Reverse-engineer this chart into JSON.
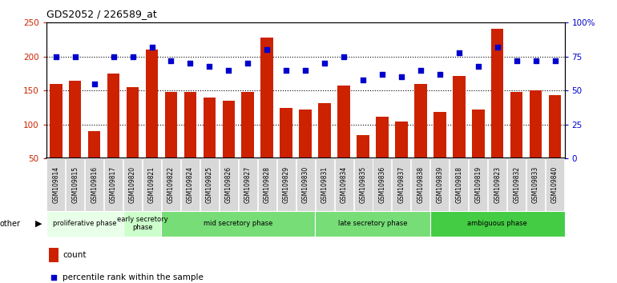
{
  "title": "GDS2052 / 226589_at",
  "samples": [
    "GSM109814",
    "GSM109815",
    "GSM109816",
    "GSM109817",
    "GSM109820",
    "GSM109821",
    "GSM109822",
    "GSM109824",
    "GSM109825",
    "GSM109826",
    "GSM109827",
    "GSM109828",
    "GSM109829",
    "GSM109830",
    "GSM109831",
    "GSM109834",
    "GSM109835",
    "GSM109836",
    "GSM109837",
    "GSM109838",
    "GSM109839",
    "GSM109818",
    "GSM109819",
    "GSM109823",
    "GSM109832",
    "GSM109833",
    "GSM109840"
  ],
  "counts": [
    160,
    165,
    90,
    175,
    155,
    210,
    148,
    148,
    140,
    135,
    148,
    228,
    125,
    122,
    131,
    157,
    84,
    112,
    104,
    160,
    118,
    172,
    122,
    241,
    148,
    150,
    143
  ],
  "percentiles": [
    75,
    75,
    55,
    75,
    75,
    82,
    72,
    70,
    68,
    65,
    70,
    80,
    65,
    65,
    70,
    75,
    58,
    62,
    60,
    65,
    62,
    78,
    68,
    82,
    72,
    72,
    72
  ],
  "bar_color": "#cc2200",
  "dot_color": "#0000cc",
  "ylim_left": [
    50,
    250
  ],
  "ylim_right": [
    0,
    100
  ],
  "yticks_left": [
    50,
    100,
    150,
    200,
    250
  ],
  "yticks_right": [
    0,
    25,
    50,
    75,
    100
  ],
  "ytick_labels_right": [
    "0",
    "25",
    "50",
    "75",
    "100%"
  ],
  "hlines": [
    100,
    150,
    200
  ],
  "phases": [
    {
      "label": "proliferative phase",
      "start": 0,
      "end": 4,
      "color": "#e8ffe8"
    },
    {
      "label": "early secretory\nphase",
      "start": 4,
      "end": 6,
      "color": "#ccffcc"
    },
    {
      "label": "mid secretory phase",
      "start": 6,
      "end": 14,
      "color": "#77dd77"
    },
    {
      "label": "late secretory phase",
      "start": 14,
      "end": 20,
      "color": "#77dd77"
    },
    {
      "label": "ambiguous phase",
      "start": 20,
      "end": 27,
      "color": "#44cc44"
    }
  ],
  "legend_count_label": "count",
  "legend_pct_label": "percentile rank within the sample",
  "other_label": "other",
  "baseline": 50
}
